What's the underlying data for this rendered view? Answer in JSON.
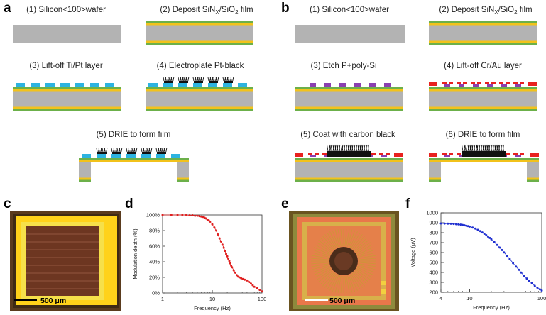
{
  "panel_labels": {
    "a": "a",
    "b": "b",
    "c": "c",
    "d": "d",
    "e": "e",
    "f": "f"
  },
  "panel_a": {
    "steps": [
      {
        "text": "(1) Silicon<100>wafer"
      },
      {
        "pre": "(2) Deposit SiN",
        "sub1": "X",
        "mid": "/SiO",
        "sub2": "2",
        "post": " film"
      },
      {
        "text": "(3) Lift-off Ti/Pt layer"
      },
      {
        "text": "(4) Electroplate Pt-black"
      },
      {
        "text": "(5) DRIE to form film"
      }
    ]
  },
  "panel_b": {
    "steps": [
      {
        "text": "(1) Silicon<100>wafer"
      },
      {
        "pre": "(2) Deposit SiN",
        "sub1": "X",
        "mid": "/SiO",
        "sub2": "2",
        "post": " film"
      },
      {
        "text": "(3) Etch P+poly-Si"
      },
      {
        "text": "(4) Lift-off Cr/Au layer"
      },
      {
        "text": "(5) Coat with carbon black"
      },
      {
        "text": "(6) DRIE to form film"
      }
    ]
  },
  "micrographs": {
    "c_scale": "500 μm",
    "e_scale": "500 μm"
  },
  "colors": {
    "silicon": "#b3b3b3",
    "sio2": "#f2c21b",
    "sinx": "#6cb04a",
    "tipt": "#2db3e0",
    "black": "#111111",
    "poly": "#8a3fb0",
    "crau": "#e8211f"
  },
  "chart_data": [
    {
      "id": "d",
      "type": "line",
      "scale": "log-x",
      "xlabel": "Frequency (Hz)",
      "ylabel": "Modulation depth (%)",
      "xlim": [
        1,
        100
      ],
      "ylim": [
        0,
        100
      ],
      "xticks": [
        1,
        10,
        100
      ],
      "xtick_labels": [
        "1",
        "10",
        "100"
      ],
      "yticks": [
        0,
        20,
        40,
        60,
        80,
        100
      ],
      "ytick_labels": [
        "0%",
        "20%",
        "40%",
        "60%",
        "80%",
        "100%"
      ],
      "series": [
        {
          "name": "modulation depth",
          "color": "#e02020",
          "x": [
            1,
            1.5,
            2,
            2.5,
            3,
            3.5,
            4,
            4.5,
            5,
            5.5,
            6,
            6.5,
            7,
            7.5,
            8,
            8.5,
            9,
            10,
            11,
            12,
            13,
            14,
            15,
            16,
            17,
            18,
            19,
            20,
            21,
            22,
            23,
            24,
            25,
            27,
            29,
            31,
            33,
            35,
            38,
            41,
            45,
            50,
            55,
            60,
            65,
            70,
            80,
            90,
            100
          ],
          "y": [
            100,
            100,
            100,
            100,
            100,
            99.5,
            99.5,
            99,
            99,
            98.5,
            98,
            97.5,
            96.5,
            95.5,
            94,
            93,
            91.5,
            88,
            84,
            80,
            75,
            70,
            66,
            62,
            58,
            54,
            50,
            47,
            44,
            41,
            38,
            35,
            33,
            29,
            26,
            23,
            21,
            20,
            19,
            18,
            17,
            16,
            14,
            12,
            10,
            8,
            6,
            4,
            2
          ]
        }
      ]
    },
    {
      "id": "f",
      "type": "line",
      "scale": "log-x",
      "xlabel": "Frequency (Hz)",
      "ylabel": "Voltage (μV)",
      "xlim": [
        4,
        100
      ],
      "ylim": [
        200,
        1000
      ],
      "xticks": [
        4,
        10,
        100
      ],
      "xtick_labels": [
        "4",
        "10",
        "100"
      ],
      "yticks": [
        200,
        300,
        400,
        500,
        600,
        700,
        800,
        900,
        1000
      ],
      "ytick_labels": [
        "200",
        "300",
        "400",
        "500",
        "600",
        "700",
        "800",
        "900",
        "1000"
      ],
      "series": [
        {
          "name": "voltage",
          "color": "#1f2fd0",
          "x": [
            4,
            4.5,
            5,
            5.5,
            6,
            6.5,
            7,
            7.5,
            8,
            8.5,
            9,
            9.5,
            10,
            11,
            12,
            13,
            14,
            15,
            16,
            17,
            18,
            19,
            20,
            22,
            24,
            26,
            28,
            30,
            33,
            36,
            40,
            44,
            48,
            52,
            57,
            62,
            67,
            73,
            80,
            87,
            94,
            100
          ],
          "y": [
            893,
            892,
            891,
            890,
            888,
            886,
            884,
            881,
            878,
            874,
            870,
            866,
            862,
            852,
            841,
            829,
            816,
            803,
            789,
            775,
            761,
            747,
            733,
            705,
            677,
            651,
            626,
            602,
            567,
            535,
            494,
            459,
            427,
            398,
            366,
            338,
            314,
            290,
            266,
            246,
            230,
            218
          ]
        }
      ]
    }
  ]
}
